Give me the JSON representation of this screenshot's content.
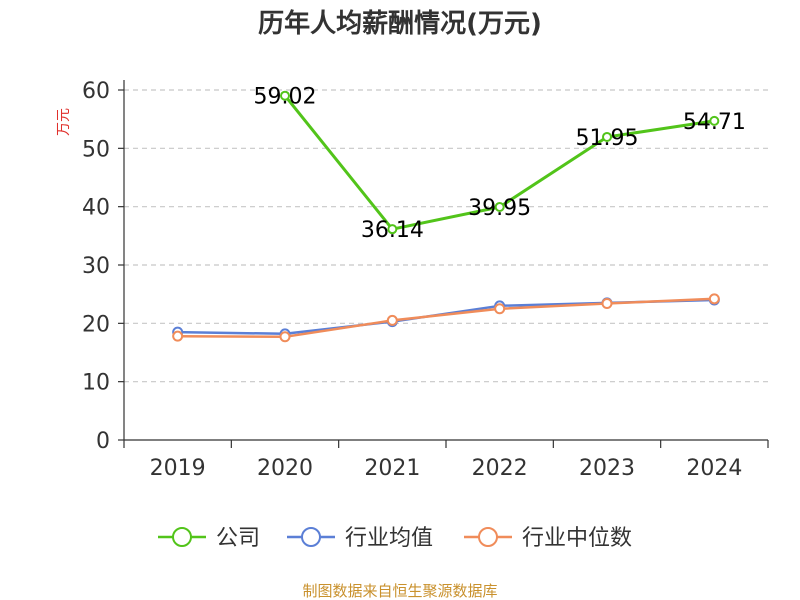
{
  "chart_data": {
    "type": "line",
    "title": "历年人均薪酬情况(万元)",
    "ylabel": "万元",
    "xlabel": "",
    "ylim": [
      0,
      60
    ],
    "yticks": [
      0,
      10,
      20,
      30,
      40,
      50,
      60
    ],
    "categories": [
      "2019",
      "2020",
      "2021",
      "2022",
      "2023",
      "2024"
    ],
    "grid": true,
    "legend_position": "bottom",
    "series": [
      {
        "name": "公司",
        "color": "#52c41a",
        "values": [
          null,
          59.02,
          36.14,
          39.95,
          51.95,
          54.71
        ],
        "labels": [
          "",
          "59.02",
          "36.14",
          "39.95",
          "51.95",
          "54.71"
        ]
      },
      {
        "name": "行业均值",
        "color": "#5b7fd6",
        "values": [
          18.5,
          18.2,
          20.3,
          23.0,
          23.5,
          24.0
        ]
      },
      {
        "name": "行业中位数",
        "color": "#f08c5a",
        "values": [
          17.8,
          17.7,
          20.5,
          22.5,
          23.4,
          24.2
        ]
      }
    ],
    "source": "制图数据来自恒生聚源数据库"
  }
}
